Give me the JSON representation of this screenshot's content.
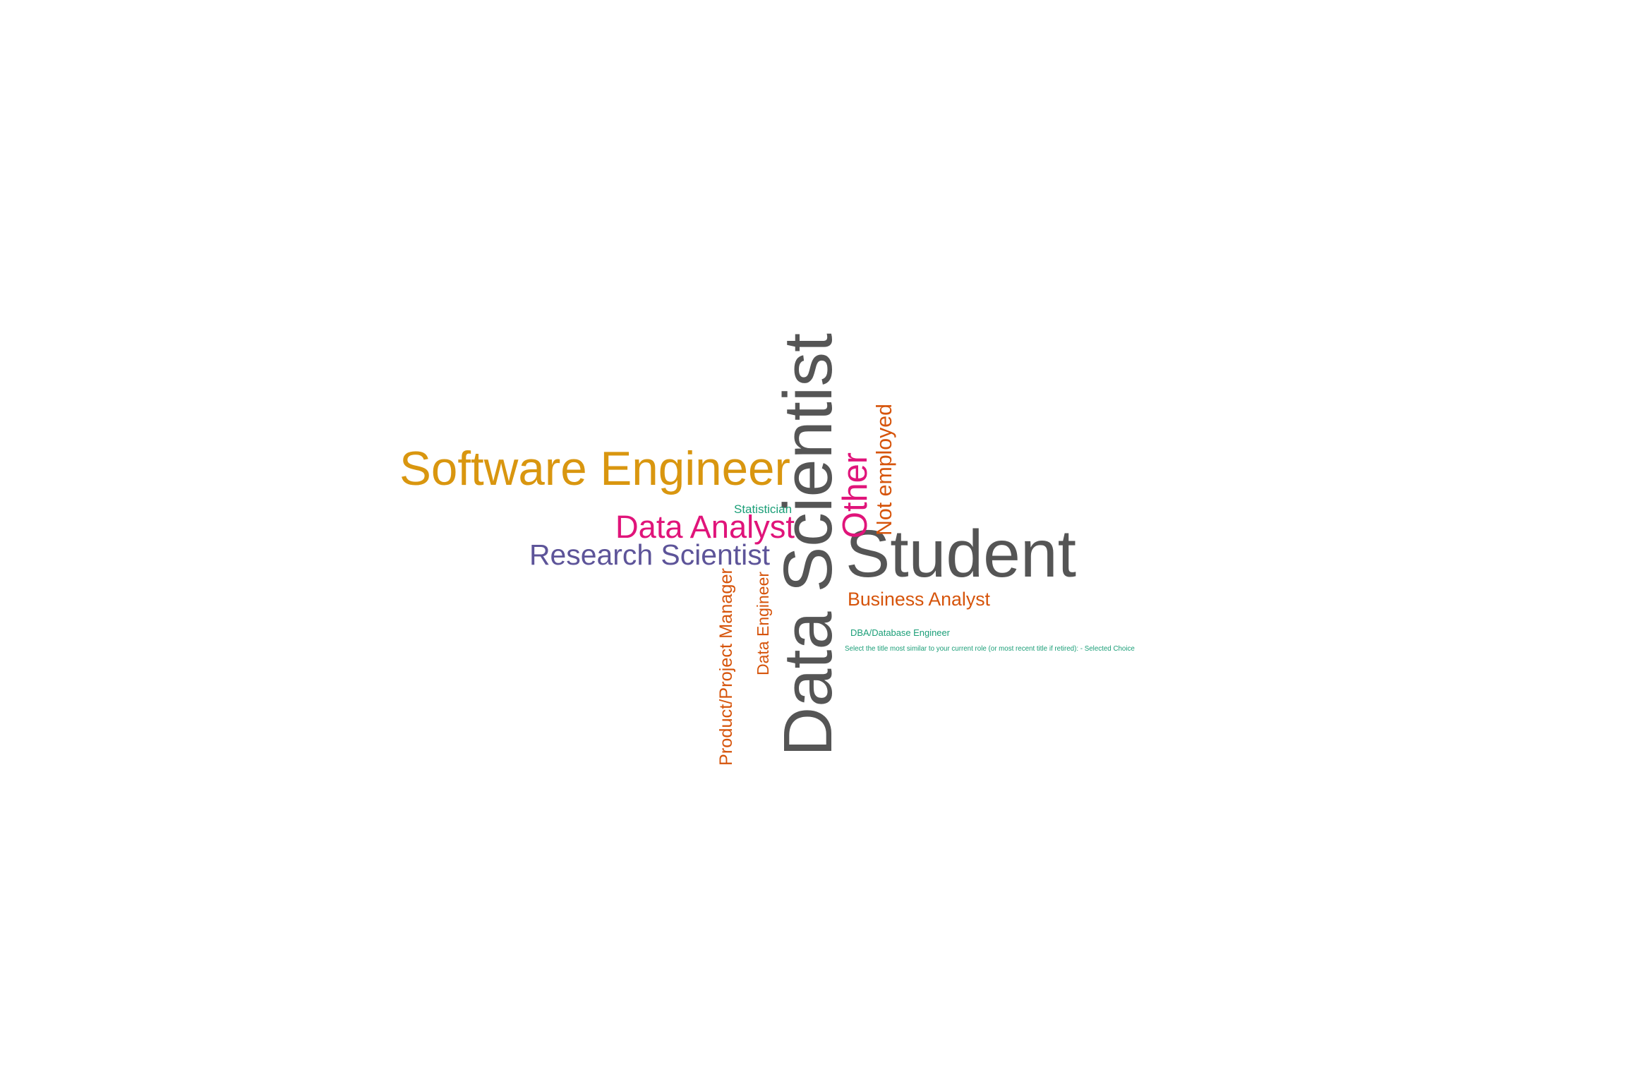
{
  "colors": {
    "gray": "#555555",
    "gold": "#D9960F",
    "magenta": "#E0147A",
    "purple": "#5D5499",
    "orange": "#D6540B",
    "teal": "#1A9E77"
  },
  "words": [
    {
      "id": "data-scientist",
      "text": "Data Scientist",
      "color": "gray",
      "orientation": "vertical"
    },
    {
      "id": "student",
      "text": "Student",
      "color": "gray",
      "orientation": "horizontal"
    },
    {
      "id": "software-engineer",
      "text": "Software Engineer",
      "color": "gold",
      "orientation": "horizontal"
    },
    {
      "id": "other",
      "text": "Other",
      "color": "magenta",
      "orientation": "vertical"
    },
    {
      "id": "data-analyst",
      "text": "Data Analyst",
      "color": "magenta",
      "orientation": "horizontal"
    },
    {
      "id": "research-scientist",
      "text": "Research Scientist",
      "color": "purple",
      "orientation": "horizontal"
    },
    {
      "id": "not-employed",
      "text": "Not employed",
      "color": "orange",
      "orientation": "vertical"
    },
    {
      "id": "business-analyst",
      "text": "Business Analyst",
      "color": "orange",
      "orientation": "horizontal"
    },
    {
      "id": "product-project-manager",
      "text": "Product/Project Manager",
      "color": "orange",
      "orientation": "vertical"
    },
    {
      "id": "data-engineer",
      "text": "Data Engineer",
      "color": "orange",
      "orientation": "vertical"
    },
    {
      "id": "statistician",
      "text": "Statistician",
      "color": "teal",
      "orientation": "horizontal"
    },
    {
      "id": "dba-database-engineer",
      "text": "DBA/Database Engineer",
      "color": "teal",
      "orientation": "horizontal"
    },
    {
      "id": "select-the-title",
      "text": "Select the title most similar to your current role (or most recent title if retired): - Selected Choice",
      "color": "teal",
      "orientation": "horizontal"
    }
  ]
}
